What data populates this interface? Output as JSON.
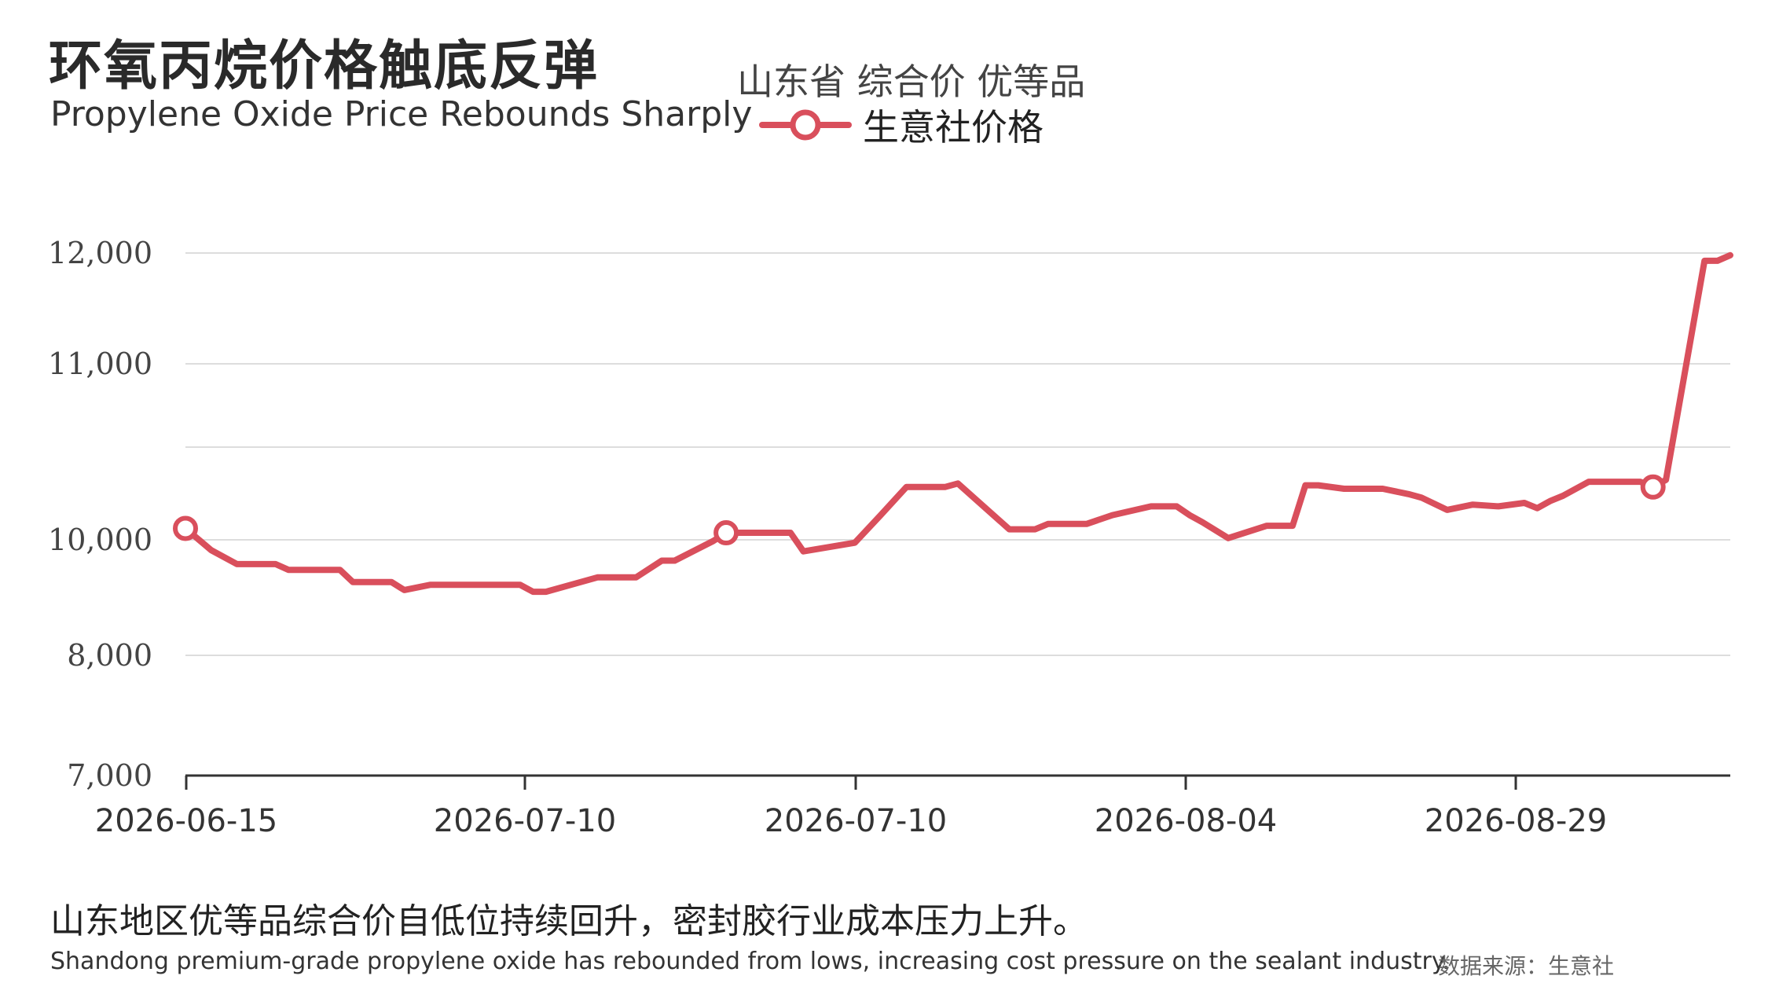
{
  "header": {
    "title_cn": "环氧丙烷价格触底反弹",
    "title_en": "Propylene Oxide Price Rebounds Sharply",
    "subtitle": "山东省 综合价 优等品"
  },
  "legend": {
    "label": "生意社价格",
    "color": "#d94f5c"
  },
  "footer": {
    "note_cn": "山东地区优等品综合价自低位持续回升，密封胶行业成本压力上升。",
    "note_en": "Shandong premium-grade propylene oxide has rebounded from lows, increasing cost pressure on the sealant industry.",
    "source": "数据来源：生意社"
  },
  "colors": {
    "line": "#d94f5c",
    "grid": "#dddddd",
    "axis": "#333333"
  },
  "chart_data": {
    "type": "line",
    "title": "环氧丙烷价格触底反弹",
    "ytick_labels": [
      "7,000",
      "8,000",
      "10,000",
      "11,000",
      "12,000"
    ],
    "xtick_labels": [
      "2026-06-15",
      "2026-07-10",
      "2026-07-10",
      "2026-08-04",
      "2026-08-29"
    ],
    "grid": true,
    "legend_position": "top",
    "series": [
      {
        "name": "生意社价格",
        "marker_indices": [
          0,
          18,
          56,
          79
        ],
        "points": [
          [
            0,
            10065
          ],
          [
            2,
            9820
          ],
          [
            4,
            9580
          ],
          [
            7,
            9580
          ],
          [
            8,
            9480
          ],
          [
            12,
            9480
          ],
          [
            13,
            9270
          ],
          [
            16,
            9270
          ],
          [
            17,
            9130
          ],
          [
            19,
            9220
          ],
          [
            26,
            9220
          ],
          [
            27,
            9100
          ],
          [
            28,
            9100
          ],
          [
            32,
            9350
          ],
          [
            35,
            9350
          ],
          [
            37,
            9640
          ],
          [
            38,
            9640
          ],
          [
            41,
            9980
          ],
          [
            42,
            10040
          ],
          [
            47,
            10040
          ],
          [
            48,
            9800
          ],
          [
            52,
            9950
          ],
          [
            54,
            10140
          ],
          [
            56,
            10300
          ],
          [
            59,
            10300
          ],
          [
            60,
            10320
          ],
          [
            64,
            10060
          ],
          [
            65,
            10060
          ],
          [
            66,
            10060
          ],
          [
            67,
            10090
          ],
          [
            70,
            10090
          ],
          [
            72,
            10140
          ],
          [
            75,
            10190
          ],
          [
            77,
            10190
          ],
          [
            78,
            10140
          ],
          [
            79,
            10100
          ],
          [
            81,
            10010
          ],
          [
            84,
            10080
          ],
          [
            86,
            10080
          ],
          [
            87,
            10310
          ],
          [
            88,
            10310
          ],
          [
            90,
            10290
          ],
          [
            93,
            10290
          ],
          [
            95,
            10260
          ],
          [
            96,
            10240
          ],
          [
            98,
            10170
          ],
          [
            100,
            10200
          ],
          [
            102,
            10190
          ],
          [
            104,
            10210
          ],
          [
            105,
            10180
          ],
          [
            106,
            10220
          ],
          [
            107,
            10250
          ],
          [
            109,
            10330
          ],
          [
            111,
            10330
          ],
          [
            112,
            10330
          ],
          [
            113,
            10330
          ],
          [
            114,
            10300
          ],
          [
            115,
            10340
          ],
          [
            118,
            11930
          ],
          [
            119,
            11930
          ],
          [
            120,
            11980
          ]
        ]
      }
    ]
  }
}
